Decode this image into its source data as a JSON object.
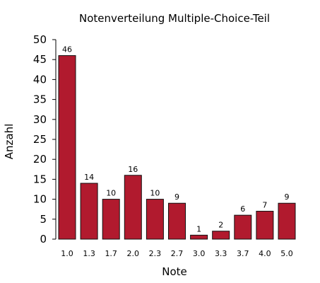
{
  "chart_data": {
    "type": "bar",
    "title": "Notenverteilung Multiple-Choice-Teil",
    "xlabel": "Note",
    "ylabel": "Anzahl",
    "categories": [
      "1.0",
      "1.3",
      "1.7",
      "2.0",
      "2.3",
      "2.7",
      "3.0",
      "3.3",
      "3.7",
      "4.0",
      "5.0"
    ],
    "values": [
      46,
      14,
      10,
      16,
      10,
      9,
      1,
      2,
      6,
      7,
      9
    ],
    "ylim": [
      0,
      50
    ],
    "yticks": [
      0,
      5,
      10,
      15,
      20,
      25,
      30,
      35,
      40,
      45,
      50
    ],
    "grid": false,
    "legend": "none",
    "colors": {
      "bar": "#b11a2e",
      "bar_edge": "#111111",
      "axis": "#000000"
    }
  }
}
